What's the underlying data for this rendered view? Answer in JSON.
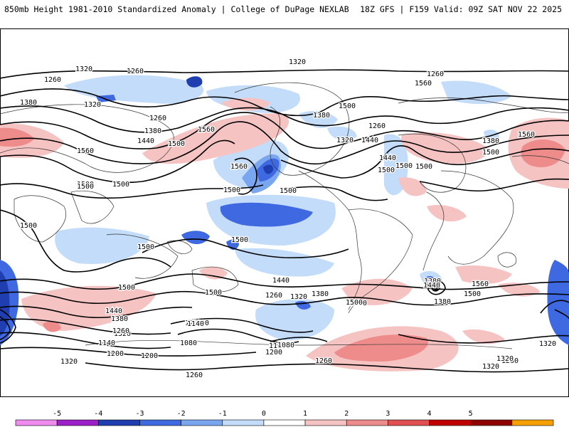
{
  "header": {
    "title_left": "850mb Height 1981-2010 Standardized Anomaly | College of DuPage NEXLAB",
    "title_right": "18Z GFS | F159 Valid: 09Z SAT NOV 22 2025"
  },
  "map": {
    "contour_labels": [
      "1320",
      "1260",
      "1260",
      "1380",
      "1320",
      "1260",
      "1380",
      "1440",
      "1500",
      "1560",
      "1560",
      "1500",
      "1320",
      "1260",
      "1560",
      "1500",
      "1440",
      "1380",
      "1320",
      "1260",
      "1500",
      "1560",
      "1500",
      "1440",
      "1380",
      "1500",
      "1560",
      "1500",
      "1500",
      "1500",
      "1500",
      "1500",
      "1440",
      "1380",
      "1320",
      "1260",
      "1260",
      "1200",
      "1140",
      "1080",
      "1200",
      "1140",
      "1080",
      "1260",
      "1320",
      "1500",
      "1500",
      "1440",
      "1380",
      "1320",
      "1260",
      "1200",
      "1140",
      "1200",
      "1260",
      "1320",
      "1260",
      "1320",
      "1380",
      "1440",
      "1500",
      "1560",
      "1500",
      "1500",
      "1500",
      "1500",
      "1500",
      "1380",
      "1320"
    ]
  },
  "colorbar": {
    "ticks": [
      "-5",
      "-4",
      "-3",
      "-2",
      "-1",
      "0",
      "1",
      "2",
      "3",
      "4",
      "5"
    ],
    "colors": [
      "#f08cf0",
      "#9d1fc9",
      "#1f3fb0",
      "#3f69e0",
      "#7aa6f0",
      "#c3dcfa",
      "#ffffff",
      "#f6c3c3",
      "#ee8c8c",
      "#e05050",
      "#c00000",
      "#8f0000",
      "#f5a000"
    ]
  }
}
